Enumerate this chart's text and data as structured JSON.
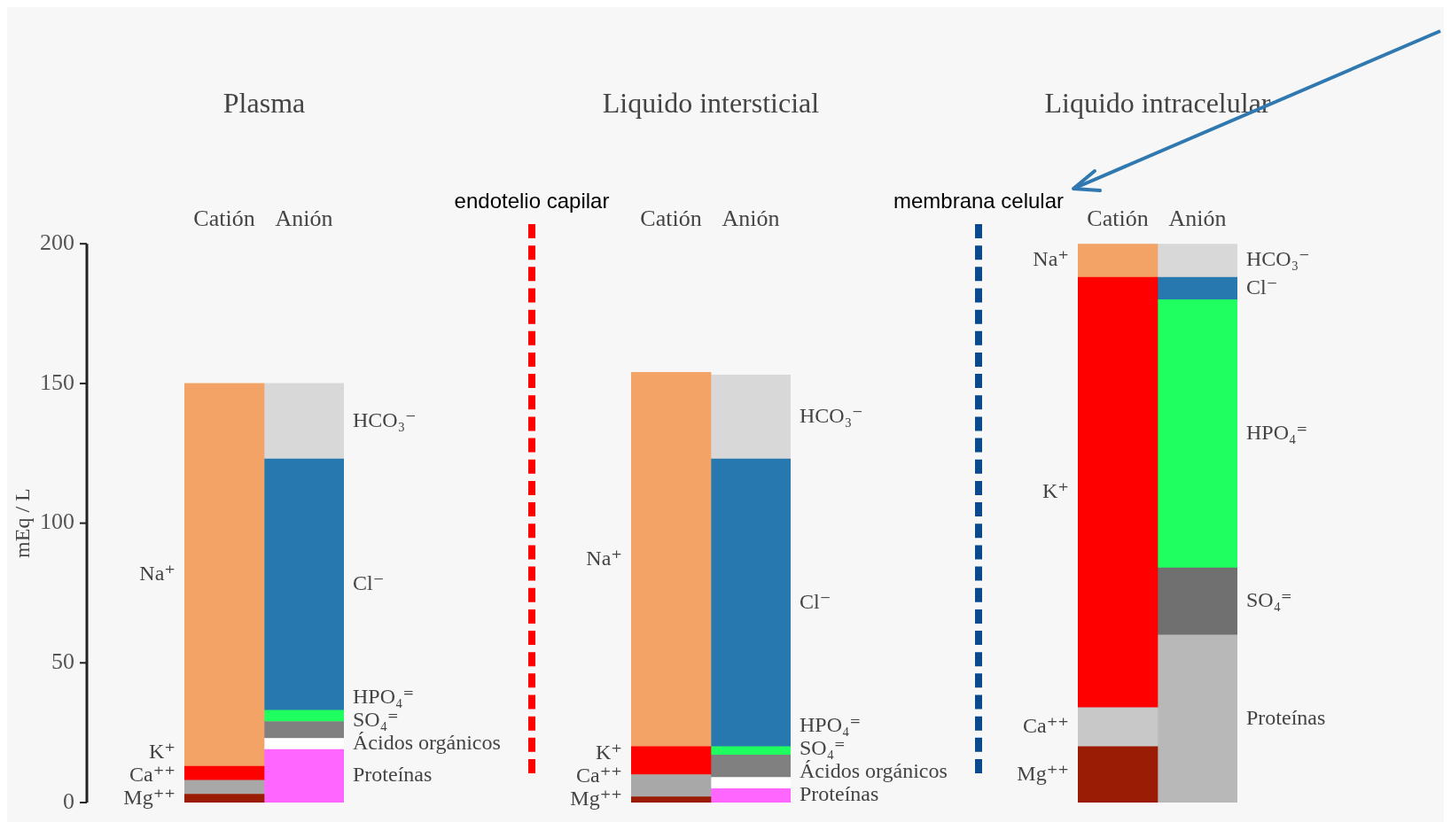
{
  "chart_data": [
    {
      "type": "bar",
      "title": "Plasma",
      "ylabel": "mEq / L",
      "stacked": true,
      "categories": [
        "Catión",
        "Anión"
      ],
      "ylim": [
        0,
        200
      ],
      "yticks": [
        0,
        50,
        100,
        150,
        200
      ],
      "annotations": [
        "endotelio capilar"
      ],
      "series": [
        {
          "name": "Mg⁺⁺",
          "color": "#9b1c05",
          "values": [
            3,
            null
          ]
        },
        {
          "name": "Ca⁺⁺",
          "color": "#a8a8a8",
          "values": [
            5,
            null
          ]
        },
        {
          "name": "K⁺",
          "color": "#ff0000",
          "values": [
            5,
            null
          ]
        },
        {
          "name": "Na⁺",
          "color": "#f2a365",
          "values": [
            137,
            null
          ]
        },
        {
          "name": "Proteínas",
          "color": "#ff66ff",
          "values": [
            null,
            19
          ]
        },
        {
          "name": "Ácidos orgánicos",
          "color": "#ffffff",
          "values": [
            null,
            4
          ]
        },
        {
          "name": "SO₄⁼",
          "color": "#808080",
          "values": [
            null,
            6
          ]
        },
        {
          "name": "HPO₄⁼",
          "color": "#20ff60",
          "values": [
            null,
            4
          ]
        },
        {
          "name": "Cl⁻",
          "color": "#2878b0",
          "values": [
            null,
            90
          ]
        },
        {
          "name": "HCO₃⁻",
          "color": "#d8d8d8",
          "values": [
            null,
            27
          ]
        }
      ]
    },
    {
      "type": "bar",
      "title": "Liquido intersticial",
      "stacked": true,
      "categories": [
        "Catión",
        "Anión"
      ],
      "ylim": [
        0,
        200
      ],
      "yticks": [
        0,
        50,
        100,
        150,
        200
      ],
      "tick_labels": "x",
      "annotations": [
        "membrana celular"
      ],
      "series": [
        {
          "name": "Mg⁺⁺",
          "color": "#9b1c05",
          "values": [
            2,
            null
          ]
        },
        {
          "name": "Ca⁺⁺",
          "color": "#a8a8a8",
          "values": [
            8,
            null
          ]
        },
        {
          "name": "K⁺",
          "color": "#ff0000",
          "values": [
            10,
            null
          ]
        },
        {
          "name": "Na⁺",
          "color": "#f2a365",
          "values": [
            134,
            null
          ]
        },
        {
          "name": "Proteínas",
          "color": "#ff66ff",
          "values": [
            null,
            5
          ]
        },
        {
          "name": "Ácidos orgánicos",
          "color": "#ffffff",
          "values": [
            null,
            4
          ]
        },
        {
          "name": "SO₄⁼",
          "color": "#808080",
          "values": [
            null,
            8
          ]
        },
        {
          "name": "HPO₄⁼",
          "color": "#20ff60",
          "values": [
            null,
            3
          ]
        },
        {
          "name": "Cl⁻",
          "color": "#2878b0",
          "values": [
            null,
            103
          ]
        },
        {
          "name": "HCO₃⁻",
          "color": "#d8d8d8",
          "values": [
            null,
            30
          ]
        }
      ]
    },
    {
      "type": "bar",
      "title": "Liquido intracelular",
      "stacked": true,
      "categories": [
        "Catión",
        "Anión"
      ],
      "ylim": [
        0,
        200
      ],
      "yticks": [
        0,
        50,
        100,
        150,
        200
      ],
      "tick_labels": "x",
      "series": [
        {
          "name": "Mg⁺⁺",
          "color": "#9b1c05",
          "values": [
            20,
            null
          ]
        },
        {
          "name": "Ca⁺⁺",
          "color": "#c8c8c8",
          "values": [
            14,
            null
          ]
        },
        {
          "name": "K⁺",
          "color": "#ff0000",
          "values": [
            154,
            null
          ]
        },
        {
          "name": "Na⁺",
          "color": "#f2a365",
          "values": [
            12,
            null
          ]
        },
        {
          "name": "Proteínas",
          "color": "#b8b8b8",
          "values": [
            null,
            60
          ]
        },
        {
          "name": "SO₄⁼",
          "color": "#707070",
          "values": [
            null,
            24
          ]
        },
        {
          "name": "HPO₄⁼",
          "color": "#20ff60",
          "values": [
            null,
            96
          ]
        },
        {
          "name": "Cl⁻",
          "color": "#2878b0",
          "values": [
            null,
            8
          ]
        },
        {
          "name": "HCO₃⁻",
          "color": "#d8d8d8",
          "values": [
            null,
            12
          ]
        }
      ]
    }
  ]
}
